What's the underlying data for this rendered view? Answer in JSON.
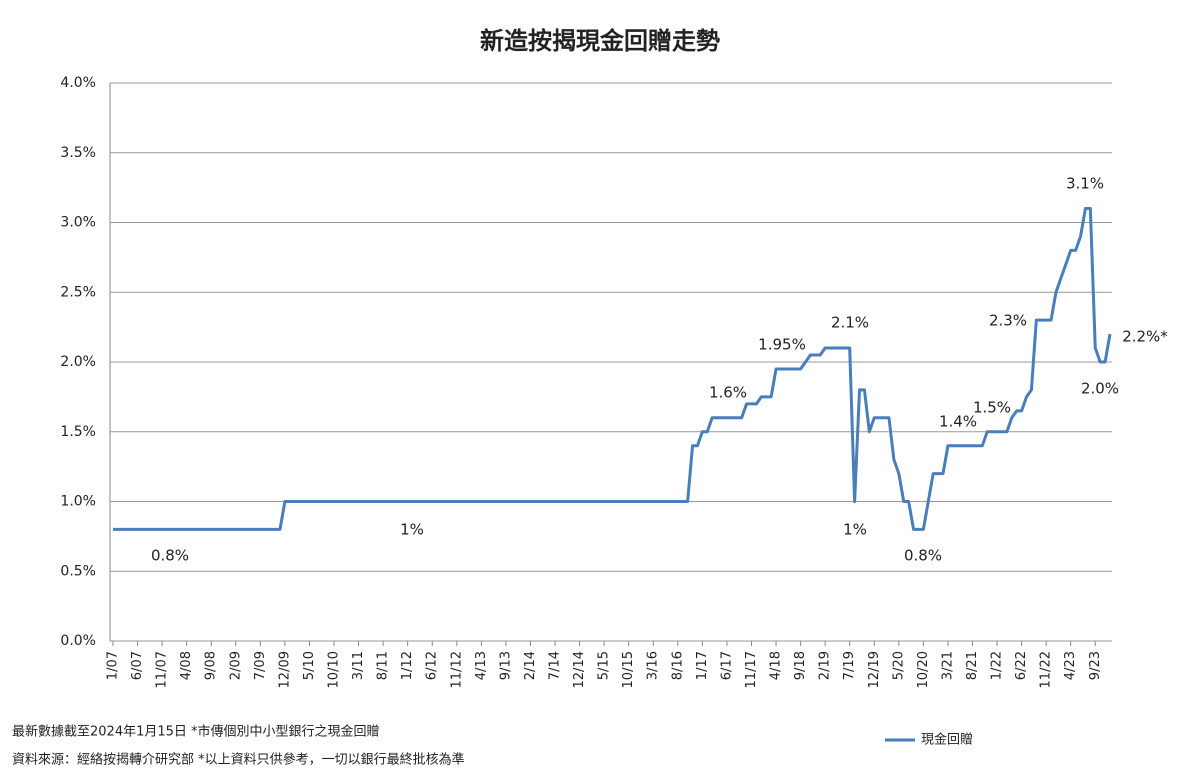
{
  "chart_data": {
    "type": "line",
    "title": "新造按揭現金回贈走勢",
    "categories": [
      "1/07",
      null,
      null,
      null,
      null,
      "6/07",
      null,
      null,
      null,
      null,
      "11/07",
      null,
      null,
      null,
      null,
      "4/08",
      null,
      null,
      null,
      null,
      "9/08",
      null,
      null,
      null,
      null,
      "2/09",
      null,
      null,
      null,
      null,
      "7/09",
      null,
      null,
      null,
      null,
      "12/09",
      null,
      null,
      null,
      null,
      "5/10",
      null,
      null,
      null,
      null,
      "10/10",
      null,
      null,
      null,
      null,
      "3/11",
      null,
      null,
      null,
      null,
      "8/11",
      null,
      null,
      null,
      null,
      "1/12",
      null,
      null,
      null,
      null,
      "6/12",
      null,
      null,
      null,
      null,
      "11/12",
      null,
      null,
      null,
      null,
      "4/13",
      null,
      null,
      null,
      null,
      "9/13",
      null,
      null,
      null,
      null,
      "2/14",
      null,
      null,
      null,
      null,
      "7/14",
      null,
      null,
      null,
      null,
      "12/14",
      null,
      null,
      null,
      null,
      "5/15",
      null,
      null,
      null,
      null,
      "10/15",
      null,
      null,
      null,
      null,
      "3/16",
      null,
      null,
      null,
      null,
      "8/16",
      null,
      null,
      null,
      null,
      "1/17",
      null,
      null,
      null,
      null,
      "6/17",
      null,
      null,
      null,
      null,
      "11/17",
      null,
      null,
      null,
      null,
      "4/18",
      null,
      null,
      null,
      null,
      "9/18",
      null,
      null,
      null,
      null,
      "2/19",
      null,
      null,
      null,
      null,
      "7/19",
      null,
      null,
      null,
      null,
      "12/19",
      null,
      null,
      null,
      null,
      "5/20",
      null,
      null,
      null,
      null,
      "10/20",
      null,
      null,
      null,
      null,
      "3/21",
      null,
      null,
      null,
      null,
      "8/21",
      null,
      null,
      null,
      null,
      "1/22",
      null,
      null,
      null,
      null,
      "6/22",
      null,
      null,
      null,
      null,
      "11/22",
      null,
      null,
      null,
      null,
      "4/23",
      null,
      null,
      null,
      null,
      "9/23",
      null,
      null,
      null
    ],
    "series": [
      {
        "name": "現金回贈",
        "color": "#4a7ebb",
        "values": [
          0.8,
          0.8,
          0.8,
          0.8,
          0.8,
          0.8,
          0.8,
          0.8,
          0.8,
          0.8,
          0.8,
          0.8,
          0.8,
          0.8,
          0.8,
          0.8,
          0.8,
          0.8,
          0.8,
          0.8,
          0.8,
          0.8,
          0.8,
          0.8,
          0.8,
          0.8,
          0.8,
          0.8,
          0.8,
          0.8,
          0.8,
          0.8,
          0.8,
          0.8,
          0.8,
          1,
          1,
          1,
          1,
          1,
          1,
          1,
          1,
          1,
          1,
          1,
          1,
          1,
          1,
          1,
          1,
          1,
          1,
          1,
          1,
          1,
          1,
          1,
          1,
          1,
          1,
          1,
          1,
          1,
          1,
          1,
          1,
          1,
          1,
          1,
          1,
          1,
          1,
          1,
          1,
          1,
          1,
          1,
          1,
          1,
          1,
          1,
          1,
          1,
          1,
          1,
          1,
          1,
          1,
          1,
          1,
          1,
          1,
          1,
          1,
          1,
          1,
          1,
          1,
          1,
          1,
          1,
          1,
          1,
          1,
          1,
          1,
          1,
          1,
          1,
          1,
          1,
          1,
          1,
          1,
          1,
          1,
          1,
          1.4,
          1.4,
          1.5,
          1.5,
          1.6,
          1.6,
          1.6,
          1.6,
          1.6,
          1.6,
          1.6,
          1.7,
          1.7,
          1.7,
          1.75,
          1.75,
          1.75,
          1.95,
          1.95,
          1.95,
          1.95,
          1.95,
          1.95,
          2.0,
          2.05,
          2.05,
          2.05,
          2.1,
          2.1,
          2.1,
          2.1,
          2.1,
          2.1,
          1.0,
          1.8,
          1.8,
          1.5,
          1.6,
          1.6,
          1.6,
          1.6,
          1.3,
          1.2,
          1.0,
          1.0,
          0.8,
          0.8,
          0.8,
          1.0,
          1.2,
          1.2,
          1.2,
          1.4,
          1.4,
          1.4,
          1.4,
          1.4,
          1.4,
          1.4,
          1.4,
          1.5,
          1.5,
          1.5,
          1.5,
          1.5,
          1.6,
          1.65,
          1.65,
          1.75,
          1.8,
          2.3,
          2.3,
          2.3,
          2.3,
          2.5,
          2.6,
          2.7,
          2.8,
          2.8,
          2.9,
          3.1,
          3.1,
          2.1,
          2.0,
          2.0,
          2.2
        ]
      }
    ],
    "ylim": [
      0,
      4
    ],
    "yticks": [
      {
        "value": 0,
        "label": "0.0%"
      },
      {
        "value": 0.5,
        "label": "0.5%"
      },
      {
        "value": 1,
        "label": "1.0%"
      },
      {
        "value": 1.5,
        "label": "1.5%"
      },
      {
        "value": 2,
        "label": "2.0%"
      },
      {
        "value": 2.5,
        "label": "2.5%"
      },
      {
        "value": 3,
        "label": "3.0%"
      },
      {
        "value": 3.5,
        "label": "3.5%"
      },
      {
        "value": 4,
        "label": "4.0%"
      }
    ],
    "grid": true,
    "annotations": [
      "0.8%",
      "1%",
      "1.6%",
      "1.95%",
      "2.1%",
      "1%",
      "0.8%",
      "1.4%",
      "1.5%",
      "2.3%",
      "3.1%",
      "2.2%*",
      "2.0%"
    ],
    "notes": [
      "最新數據截至2024年1月15日 *市傳個別中小型銀行之現金回贈",
      "資料來源：經絡按揭轉介研究部  *以上資料只供參考，一切以銀行最終批核為準"
    ]
  }
}
